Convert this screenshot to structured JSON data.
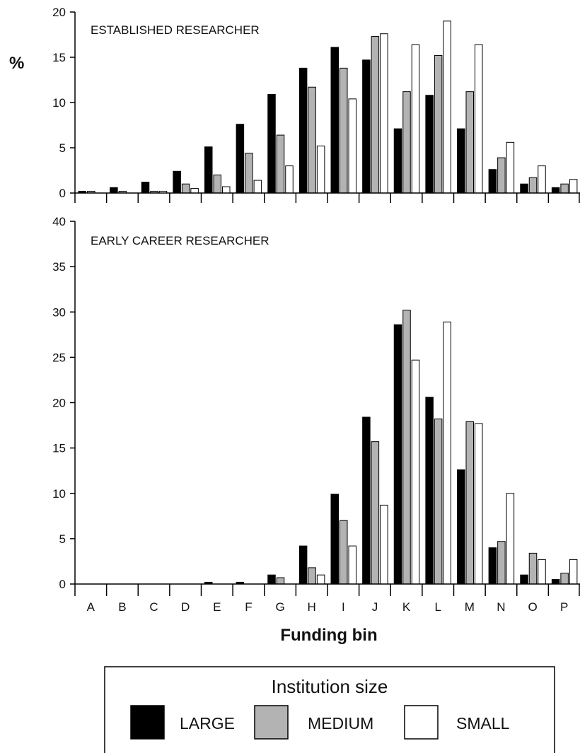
{
  "chart_data": {
    "type": "bar",
    "ylabel": "%",
    "xlabel": "Funding bin",
    "categories": [
      "A",
      "B",
      "C",
      "D",
      "E",
      "F",
      "G",
      "H",
      "I",
      "J",
      "K",
      "L",
      "M",
      "N",
      "O",
      "P"
    ],
    "legend": {
      "title": "Institution size",
      "placement": "bottom",
      "entries": [
        {
          "name": "LARGE",
          "color": "#000000"
        },
        {
          "name": "MEDIUM",
          "color": "#b3b3b3"
        },
        {
          "name": "SMALL",
          "color": "#ffffff"
        }
      ]
    },
    "panels": [
      {
        "title": "ESTABLISHED RESEARCHER",
        "ylim": [
          0,
          20
        ],
        "yticks": [
          0,
          5,
          10,
          15,
          20
        ],
        "series": [
          {
            "name": "LARGE",
            "values": [
              0.2,
              0.6,
              1.2,
              2.4,
              5.1,
              7.6,
              10.9,
              13.8,
              16.1,
              14.7,
              7.1,
              10.8,
              7.1,
              2.6,
              1.0,
              0.6
            ]
          },
          {
            "name": "MEDIUM",
            "values": [
              0.2,
              0.2,
              0.2,
              1.0,
              2.0,
              4.4,
              6.4,
              11.7,
              13.8,
              17.3,
              11.2,
              15.2,
              11.2,
              3.9,
              1.7,
              1.0
            ]
          },
          {
            "name": "SMALL",
            "values": [
              0.0,
              0.0,
              0.2,
              0.5,
              0.7,
              1.4,
              3.0,
              5.2,
              10.4,
              17.6,
              16.4,
              19.0,
              16.4,
              5.6,
              3.0,
              1.5
            ]
          }
        ]
      },
      {
        "title": "EARLY CAREER RESEARCHER",
        "ylim": [
          0,
          40
        ],
        "yticks": [
          0,
          5,
          10,
          15,
          20,
          25,
          30,
          35,
          40
        ],
        "series": [
          {
            "name": "LARGE",
            "values": [
              0,
              0,
              0,
              0,
              0.2,
              0.2,
              1.0,
              4.2,
              9.9,
              18.4,
              28.6,
              20.6,
              12.6,
              4.0,
              1.0,
              0.5
            ]
          },
          {
            "name": "MEDIUM",
            "values": [
              0,
              0,
              0,
              0,
              0,
              0,
              0.7,
              1.8,
              7.0,
              15.7,
              30.2,
              18.2,
              17.9,
              4.7,
              3.4,
              1.2
            ]
          },
          {
            "name": "SMALL",
            "values": [
              0,
              0,
              0,
              0,
              0,
              0,
              0,
              1.0,
              4.2,
              8.7,
              24.7,
              28.9,
              17.7,
              10.0,
              2.7,
              2.7
            ]
          }
        ]
      }
    ]
  }
}
